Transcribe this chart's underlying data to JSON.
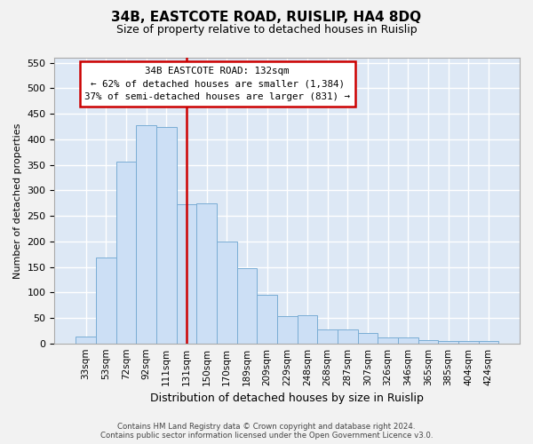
{
  "title": "34B, EASTCOTE ROAD, RUISLIP, HA4 8DQ",
  "subtitle": "Size of property relative to detached houses in Ruislip",
  "xlabel": "Distribution of detached houses by size in Ruislip",
  "ylabel": "Number of detached properties",
  "bar_values": [
    13,
    168,
    357,
    428,
    424,
    273,
    274,
    199,
    148,
    96,
    54,
    55,
    27,
    27,
    20,
    11,
    12,
    7,
    5,
    4,
    4
  ],
  "x_labels": [
    "33sqm",
    "53sqm",
    "72sqm",
    "92sqm",
    "111sqm",
    "131sqm",
    "150sqm",
    "170sqm",
    "189sqm",
    "209sqm",
    "229sqm",
    "248sqm",
    "268sqm",
    "287sqm",
    "307sqm",
    "326sqm",
    "346sqm",
    "365sqm",
    "385sqm",
    "404sqm",
    "424sqm"
  ],
  "vline_position": 5.0,
  "annotation_line1": "34B EASTCOTE ROAD: 132sqm",
  "annotation_line2": "← 62% of detached houses are smaller (1,384)",
  "annotation_line3": "37% of semi-detached houses are larger (831) →",
  "bar_color": "#ccdff5",
  "bar_edge_color": "#7aadd4",
  "vline_color": "#cc0000",
  "annotation_box_color": "#ffffff",
  "annotation_box_edge": "#cc0000",
  "plot_bg_color": "#dde8f5",
  "grid_color": "#ffffff",
  "fig_bg_color": "#f2f2f2",
  "ylim": [
    0,
    560
  ],
  "yticks": [
    0,
    50,
    100,
    150,
    200,
    250,
    300,
    350,
    400,
    450,
    500,
    550
  ],
  "footer1": "Contains HM Land Registry data © Crown copyright and database right 2024.",
  "footer2": "Contains public sector information licensed under the Open Government Licence v3.0."
}
